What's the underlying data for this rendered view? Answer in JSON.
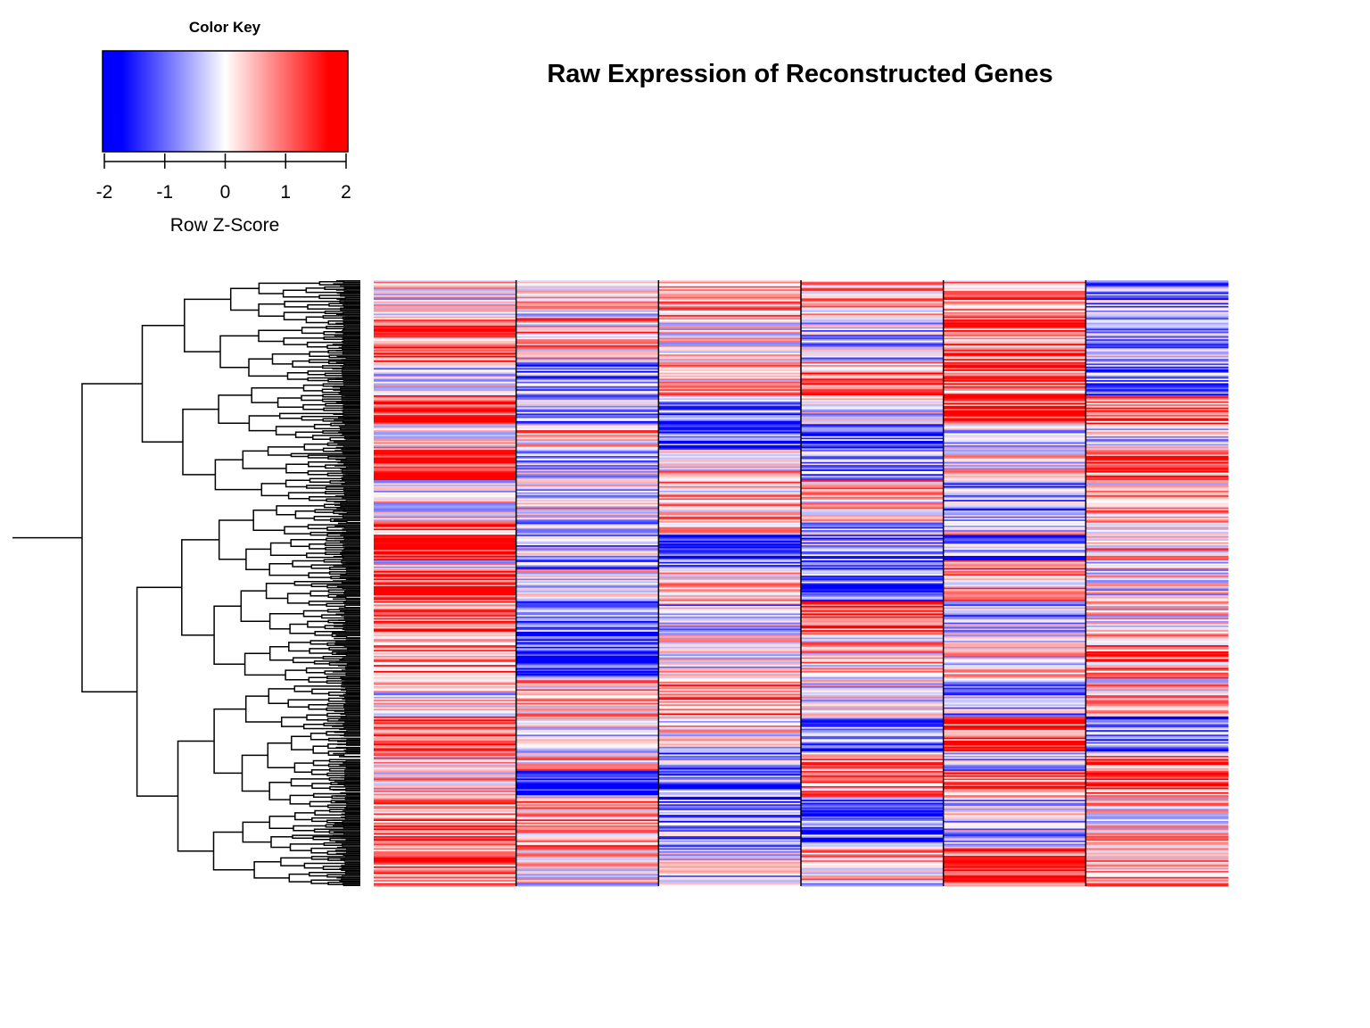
{
  "chart_data": {
    "type": "heatmap",
    "title": "Raw Expression of Reconstructed Genes",
    "color_key": {
      "title": "Color Key",
      "xlabel": "Row Z-Score",
      "range": [
        -2,
        2
      ],
      "ticks": [
        "-2",
        "-1",
        "0",
        "1",
        "2"
      ],
      "colors": {
        "low": "#0000ff",
        "mid": "#ffffff",
        "high": "#ff0000"
      }
    },
    "columns": 6,
    "rows_approx": 400,
    "column_bias": [
      0.55,
      -0.25,
      -0.35,
      0.0,
      0.25,
      0.15
    ],
    "row_dendrogram": true,
    "column_labels": [],
    "row_labels": []
  }
}
